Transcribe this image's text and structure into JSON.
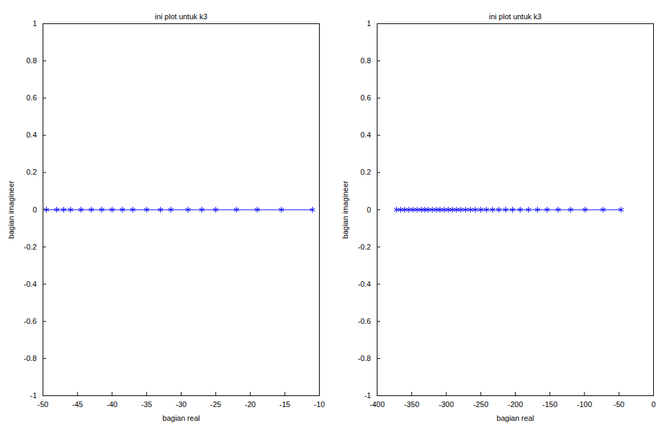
{
  "chart_data": [
    {
      "type": "line",
      "title": "ini plot untuk k3",
      "x_label": "bagian real",
      "y_label": "bagian imagineer",
      "marker": "asterisk",
      "line_style": "solid",
      "color": "#0000ff",
      "grid": false,
      "x": [
        -49.5,
        -48,
        -47,
        -46,
        -44.5,
        -43,
        -41.5,
        -40,
        -38.5,
        -37,
        -35,
        -33,
        -31.5,
        -29,
        -27,
        -25,
        -22,
        -19,
        -15.5,
        -11
      ],
      "values": [
        0,
        0,
        0,
        0,
        0,
        0,
        0,
        0,
        0,
        0,
        0,
        0,
        0,
        0,
        0,
        0,
        0,
        0,
        0,
        0
      ],
      "xlim": [
        -50,
        -10
      ],
      "xticks": [
        -50,
        -45,
        -40,
        -35,
        -30,
        -25,
        -20,
        -15,
        -10
      ],
      "ylim": [
        -1,
        1
      ],
      "yticks": [
        -1,
        -0.8,
        -0.6,
        -0.4,
        -0.2,
        0,
        0.2,
        0.4,
        0.6,
        0.8,
        1
      ]
    },
    {
      "type": "line",
      "title": "ini plot untuk k3",
      "x_label": "bagian real",
      "y_label": "bagian imagineer",
      "marker": "asterisk",
      "line_style": "solid",
      "color": "#0000ff",
      "grid": false,
      "x": [
        -372,
        -366,
        -360,
        -354,
        -348,
        -342,
        -336,
        -331,
        -326,
        -320,
        -314,
        -309,
        -303,
        -297,
        -291,
        -285,
        -279,
        -272,
        -265,
        -258,
        -250,
        -242,
        -233,
        -224,
        -214,
        -204,
        -193,
        -181,
        -168,
        -154,
        -138,
        -120,
        -99,
        -73,
        -47
      ],
      "values": [
        0,
        0,
        0,
        0,
        0,
        0,
        0,
        0,
        0,
        0,
        0,
        0,
        0,
        0,
        0,
        0,
        0,
        0,
        0,
        0,
        0,
        0,
        0,
        0,
        0,
        0,
        0,
        0,
        0,
        0,
        0,
        0,
        0,
        0,
        0
      ],
      "xlim": [
        -400,
        0
      ],
      "xticks": [
        -400,
        -350,
        -300,
        -250,
        -200,
        -150,
        -100,
        -50,
        0
      ],
      "ylim": [
        -1,
        1
      ],
      "yticks": [
        -1,
        -0.8,
        -0.6,
        -0.4,
        -0.2,
        0,
        0.2,
        0.4,
        0.6,
        0.8,
        1
      ]
    }
  ]
}
